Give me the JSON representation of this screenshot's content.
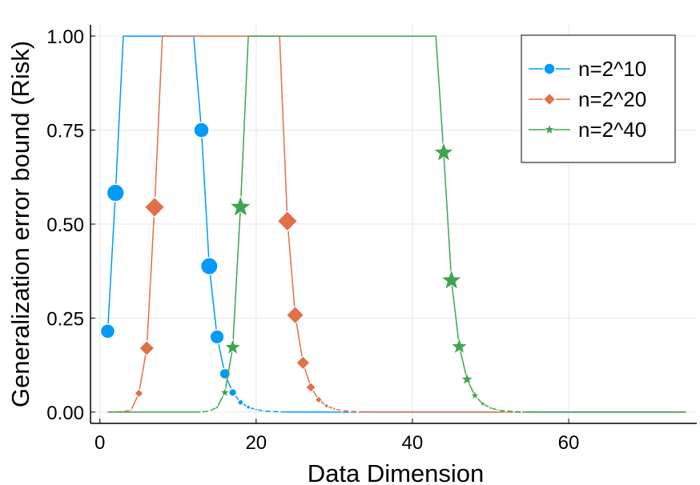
{
  "chart_data": {
    "type": "line",
    "title": "",
    "xlabel": "Data Dimension",
    "ylabel": "Generalization error bound (Risk)",
    "xlim": [
      -1.2,
      76.4
    ],
    "ylim": [
      -0.03,
      1.03
    ],
    "x_ticks": [
      0,
      20,
      40,
      60
    ],
    "y_ticks": [
      0.0,
      0.25,
      0.5,
      0.75,
      1.0
    ],
    "x_tick_labels": [
      "0",
      "20",
      "40",
      "60"
    ],
    "y_tick_labels": [
      "0.00",
      "0.25",
      "0.50",
      "0.75",
      "1.00"
    ],
    "grid": true,
    "legend_position": "top-right",
    "x": [
      1,
      2,
      3,
      4,
      5,
      6,
      7,
      8,
      9,
      10,
      11,
      12,
      13,
      14,
      15,
      16,
      17,
      18,
      19,
      20,
      21,
      22,
      23,
      24,
      25,
      26,
      27,
      28,
      29,
      30,
      31,
      32,
      33,
      34,
      35,
      36,
      37,
      38,
      39,
      40,
      41,
      42,
      43,
      44,
      45,
      46,
      47,
      48,
      49,
      50,
      51,
      52,
      53,
      54,
      55,
      56,
      57,
      58,
      59,
      60,
      61,
      62,
      63,
      64,
      65,
      66,
      67,
      68,
      69,
      70,
      71,
      72,
      73,
      74,
      75
    ],
    "series": [
      {
        "name": "n=2^10",
        "color": "#009AF9",
        "marker": "circle",
        "values": [
          0.215,
          0.583,
          1,
          1,
          1,
          1,
          1,
          1,
          1,
          1,
          1,
          1,
          0.75,
          0.388,
          0.2,
          0.102,
          0.052,
          0.026,
          0.013,
          0.0066,
          0.0033,
          0.0017,
          0.0008,
          0.0004,
          0.0002,
          0.0001,
          5e-05,
          0,
          0,
          0,
          0,
          0,
          0,
          0,
          0,
          0,
          0,
          0,
          0,
          0,
          0,
          0,
          0,
          0,
          0,
          0,
          0,
          0,
          0,
          0,
          0,
          0,
          0,
          0,
          0,
          0,
          0,
          0,
          0,
          0,
          0,
          0,
          0,
          0,
          0,
          0,
          0,
          0,
          0,
          0,
          0,
          0,
          0,
          0,
          0
        ]
      },
      {
        "name": "n=2^20",
        "color": "#E26F46",
        "marker": "diamond",
        "values": [
          0,
          0.0003,
          0.0013,
          0.0052,
          0.05,
          0.17,
          0.545,
          1,
          1,
          1,
          1,
          1,
          1,
          1,
          1,
          1,
          1,
          1,
          1,
          1,
          1,
          1,
          1,
          0.508,
          0.258,
          0.131,
          0.066,
          0.033,
          0.0167,
          0.0084,
          0.0042,
          0.0021,
          0.001,
          0.0005,
          0.00026,
          0.00013,
          6e-05,
          0,
          0,
          0,
          0,
          0,
          0,
          0,
          0,
          0,
          0,
          0,
          0,
          0,
          0,
          0,
          0,
          0,
          0,
          0,
          0,
          0,
          0,
          0,
          0,
          0,
          0,
          0,
          0,
          0,
          0,
          0,
          0,
          0,
          0,
          0,
          0,
          0,
          0
        ]
      },
      {
        "name": "n=2^40",
        "color": "#3EA44E",
        "marker": "star",
        "values": [
          0,
          0,
          0,
          0,
          0,
          0,
          0,
          0,
          0,
          0,
          0,
          0.0001,
          0.0006,
          0.0029,
          0.0125,
          0.052,
          0.172,
          0.545,
          1,
          1,
          1,
          1,
          1,
          1,
          1,
          1,
          1,
          1,
          1,
          1,
          1,
          1,
          1,
          1,
          1,
          1,
          1,
          1,
          1,
          1,
          1,
          1,
          1,
          0.69,
          0.35,
          0.174,
          0.087,
          0.044,
          0.022,
          0.011,
          0.0055,
          0.0028,
          0.0014,
          0.0007,
          0.00035,
          0.00017,
          0,
          0,
          0,
          0,
          0,
          0,
          0,
          0,
          0,
          0,
          0,
          0,
          0,
          0,
          0,
          0,
          0,
          0,
          0
        ]
      }
    ]
  }
}
